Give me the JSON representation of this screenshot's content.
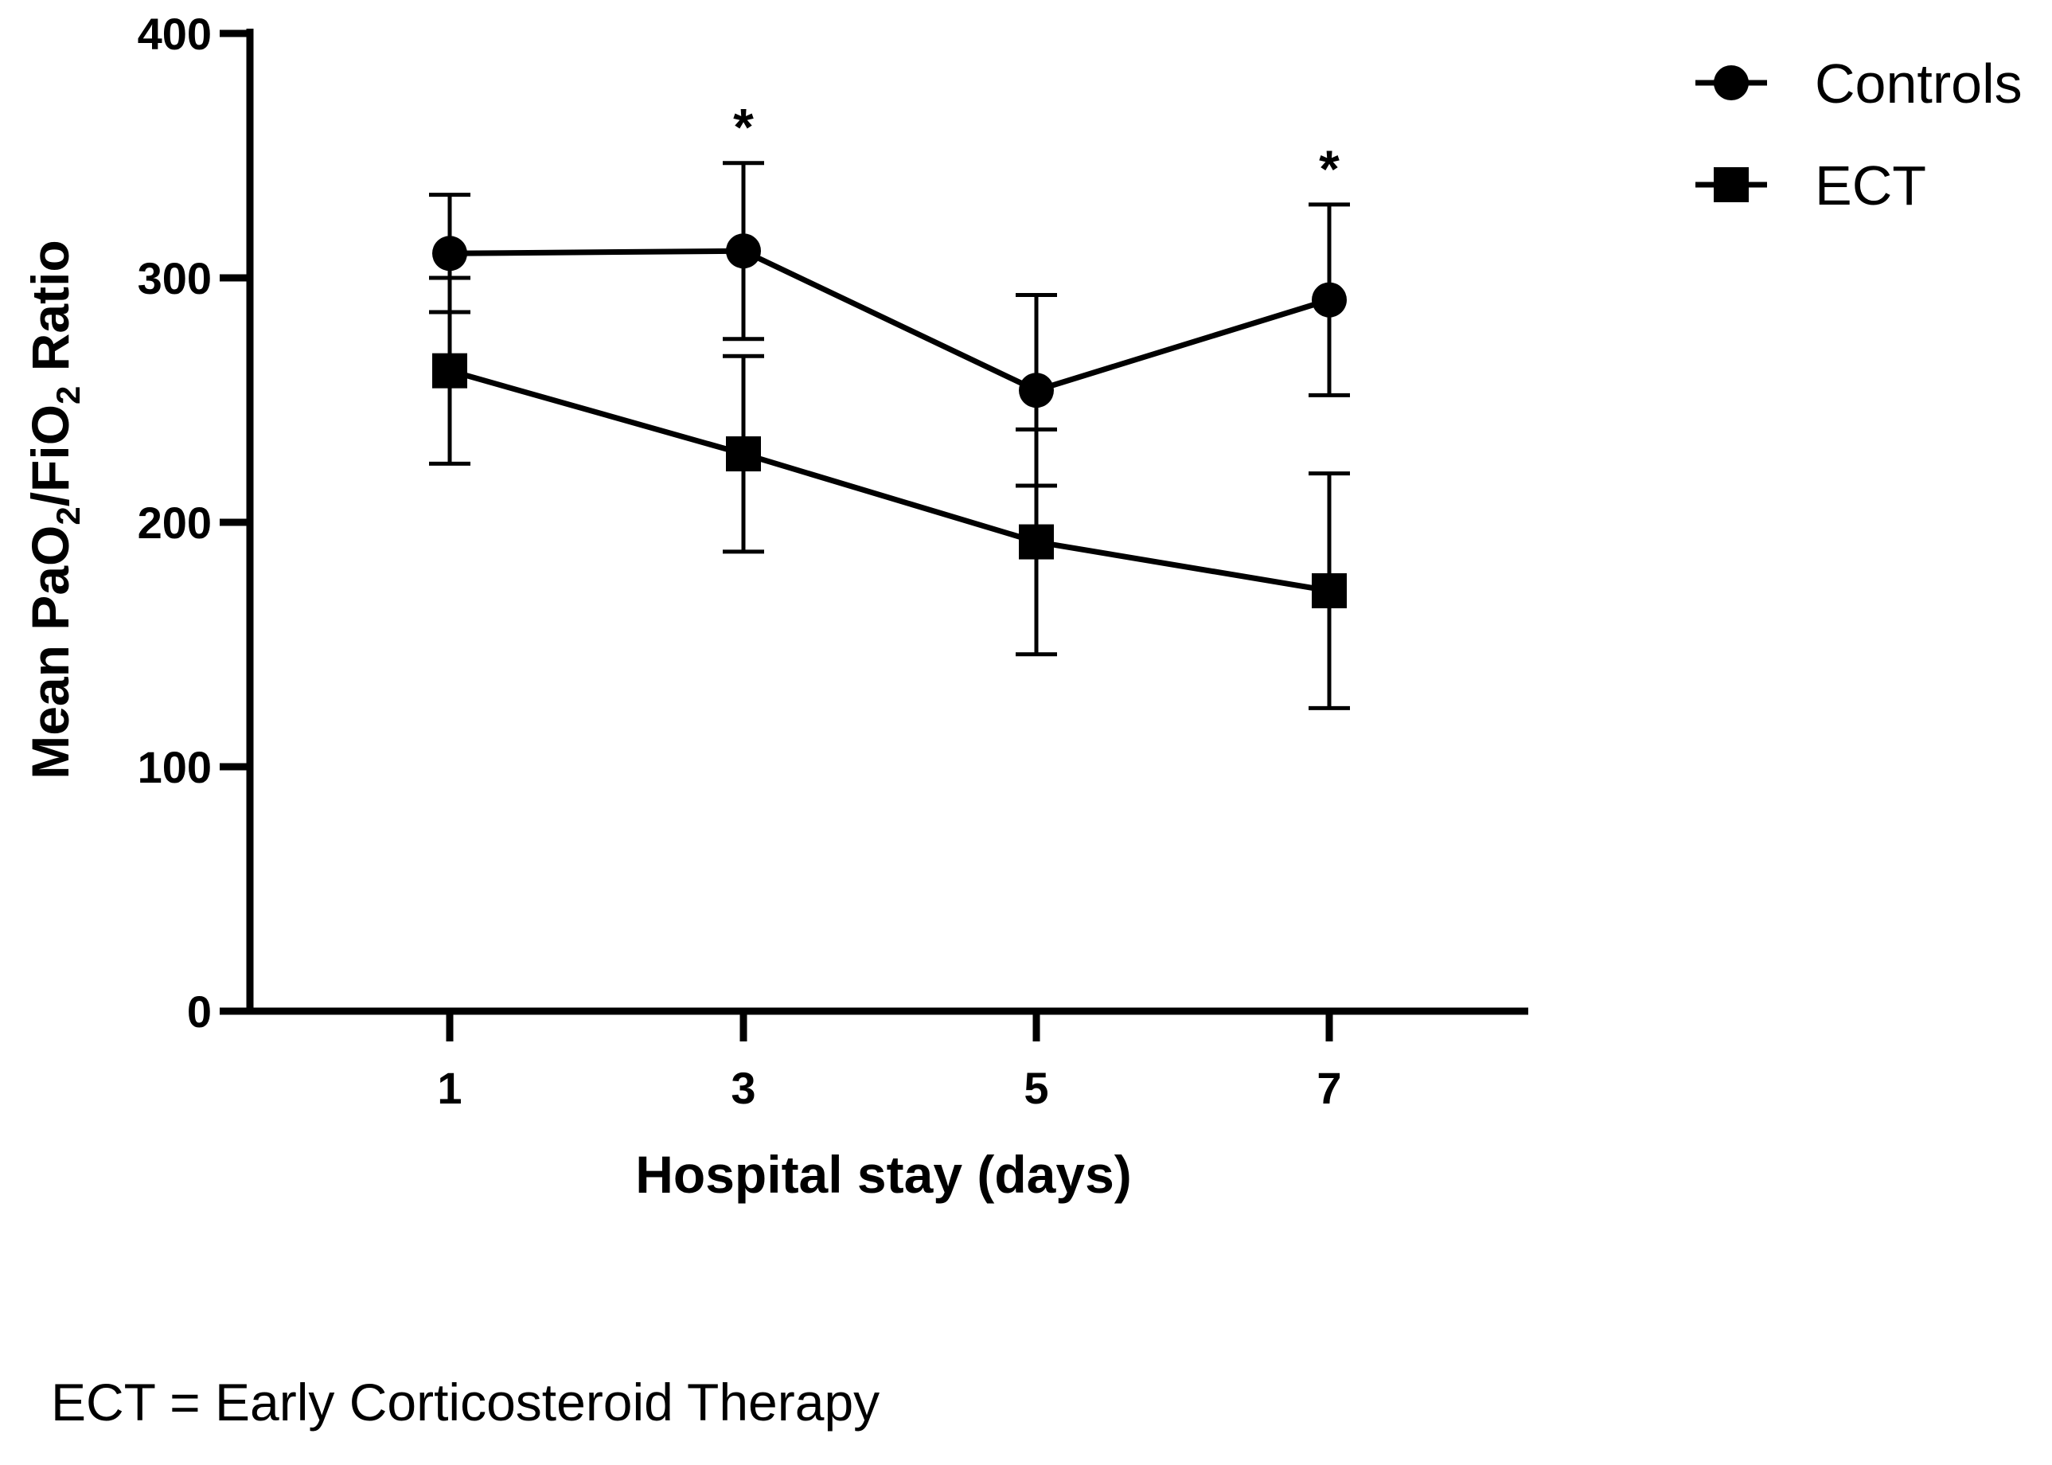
{
  "chart_data": {
    "type": "line",
    "title": "",
    "xlabel": "Hospital stay (days)",
    "ylabel": {
      "prefix": "Mean PaO",
      "sub1": "2",
      "mid": "/FiO",
      "sub2": "2",
      "suffix": " Ratio"
    },
    "x": [
      1,
      3,
      5,
      7
    ],
    "x_tick_labels": [
      "1",
      "3",
      "5",
      "7"
    ],
    "ylim": [
      0,
      400
    ],
    "y_ticks": [
      0,
      100,
      200,
      300,
      400
    ],
    "y_tick_labels": [
      "0",
      "100",
      "200",
      "300",
      "400"
    ],
    "series": [
      {
        "name": "Controls",
        "marker": "circle",
        "values": [
          310,
          311,
          254,
          291
        ],
        "error": [
          24,
          36,
          39,
          39
        ]
      },
      {
        "name": "ECT",
        "marker": "square",
        "values": [
          262,
          228,
          192,
          172
        ],
        "error": [
          38,
          40,
          46,
          48
        ]
      }
    ],
    "significance": [
      {
        "x": 3,
        "label": "*"
      },
      {
        "x": 7,
        "label": "*"
      }
    ],
    "legend_position": "top-right",
    "grid": false,
    "color": "#000000"
  },
  "footnote": "ECT = Early Corticosteroid Therapy"
}
